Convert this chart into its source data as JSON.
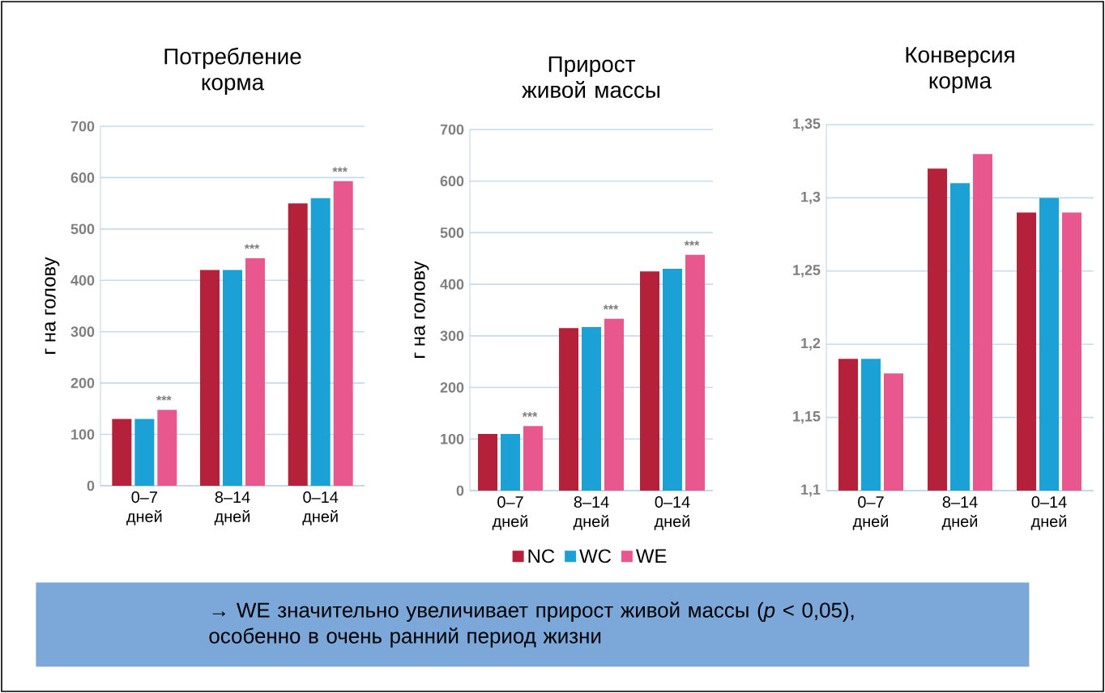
{
  "chart_data": [
    {
      "type": "bar",
      "title": "Потребление корма",
      "ylabel": "г на голову",
      "categories": [
        "0–7 дней",
        "8–14 дней",
        "0–14 дней"
      ],
      "series": [
        {
          "color": "#b5213a",
          "values": [
            130,
            420,
            550
          ]
        },
        {
          "color": "#1ba1d6",
          "values": [
            130,
            420,
            560
          ]
        },
        {
          "color": "#e8588f",
          "values": [
            148,
            443,
            593
          ]
        }
      ],
      "ylim": [
        0,
        700
      ],
      "yticks": [
        0,
        100,
        200,
        300,
        400,
        500,
        600,
        700
      ],
      "grid": "y",
      "annotations": [
        "***",
        "***",
        "***"
      ]
    },
    {
      "type": "bar",
      "title": "Прирост живой массы",
      "ylabel": "г на голову",
      "categories": [
        "0–7 дней",
        "8–14 дней",
        "0–14 дней"
      ],
      "series": [
        {
          "name": "NC",
          "color": "#b5213a",
          "values": [
            110,
            315,
            425
          ]
        },
        {
          "name": "WC",
          "color": "#1ba1d6",
          "values": [
            110,
            317,
            430
          ]
        },
        {
          "name": "WE",
          "color": "#e8588f",
          "values": [
            125,
            333,
            457
          ]
        }
      ],
      "ylim": [
        0,
        700
      ],
      "yticks": [
        0,
        100,
        200,
        300,
        400,
        500,
        600,
        700
      ],
      "grid": "y",
      "legend": "bottom",
      "annotations": [
        "***",
        "***",
        "***",
        "→  WE значительно увеличивает прирост живой массы (*p* < 0,05), особенно в очень ранний период жизни"
      ]
    },
    {
      "type": "bar",
      "title": "Конверсия корма",
      "categories": [
        "0–7 дней",
        "8–14 дней",
        "0–14 дней"
      ],
      "series": [
        {
          "color": "#b5213a",
          "values": [
            1.19,
            1.32,
            1.29
          ]
        },
        {
          "color": "#1ba1d6",
          "values": [
            1.19,
            1.31,
            1.3
          ]
        },
        {
          "color": "#e8588f",
          "values": [
            1.18,
            1.33,
            1.29
          ]
        }
      ],
      "ylim": [
        1.1,
        1.35
      ],
      "grid": "y",
      "yticks": [
        {
          "value": 1.1,
          "label": "1,1"
        },
        {
          "value": 1.15,
          "label": "1,15"
        },
        {
          "value": 1.2,
          "label": "1,2"
        },
        {
          "value": 1.25,
          "label": "1,25"
        },
        {
          "value": 1.3,
          "label": "1,3"
        },
        {
          "value": 1.35,
          "label": "1,35"
        }
      ]
    }
  ]
}
